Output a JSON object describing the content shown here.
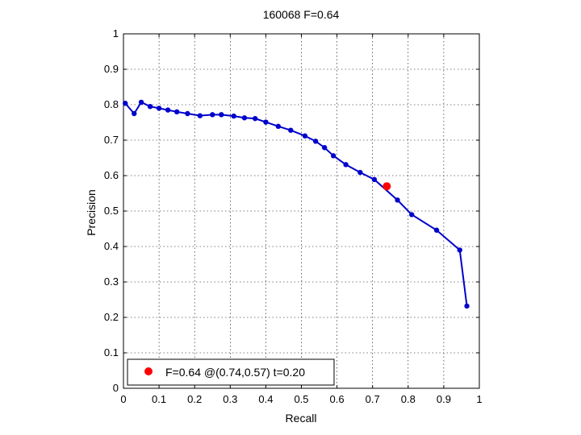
{
  "chart_data": {
    "type": "line",
    "title": "160068 F=0.64",
    "xlabel": "Recall",
    "ylabel": "Precision",
    "xlim": [
      0,
      1
    ],
    "ylim": [
      0,
      1
    ],
    "xticks": [
      "0",
      "0.1",
      "0.2",
      "0.3",
      "0.4",
      "0.5",
      "0.6",
      "0.7",
      "0.8",
      "0.9",
      "1"
    ],
    "yticks": [
      "0",
      "0.1",
      "0.2",
      "0.3",
      "0.4",
      "0.5",
      "0.6",
      "0.7",
      "0.8",
      "0.9",
      "1"
    ],
    "grid": true,
    "legend_position": "bottom-left",
    "series": [
      {
        "color": "#0000cc",
        "x": [
          0.005,
          0.03,
          0.05,
          0.075,
          0.1,
          0.125,
          0.15,
          0.18,
          0.215,
          0.25,
          0.275,
          0.31,
          0.34,
          0.37,
          0.4,
          0.435,
          0.47,
          0.51,
          0.54,
          0.565,
          0.59,
          0.625,
          0.665,
          0.705,
          0.77,
          0.81,
          0.88,
          0.945,
          0.965
        ],
        "y": [
          0.804,
          0.775,
          0.807,
          0.795,
          0.79,
          0.785,
          0.78,
          0.775,
          0.769,
          0.772,
          0.772,
          0.768,
          0.763,
          0.761,
          0.751,
          0.739,
          0.728,
          0.712,
          0.697,
          0.679,
          0.656,
          0.631,
          0.609,
          0.589,
          0.531,
          0.49,
          0.446,
          0.39,
          0.232
        ]
      }
    ],
    "highlight_point": {
      "x": 0.74,
      "y": 0.57,
      "color": "#ff0000"
    },
    "legend": {
      "label": "F=0.64 @(0.74,0.57) t=0.20"
    }
  }
}
